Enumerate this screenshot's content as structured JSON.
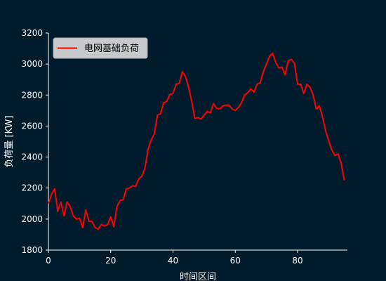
{
  "chart_data": {
    "type": "line",
    "xlabel": "时间区间",
    "ylabel": "负荷量 [KW]",
    "xlim": [
      0,
      96
    ],
    "ylim": [
      1800,
      3200
    ],
    "xticks": [
      0,
      20,
      40,
      60,
      80
    ],
    "yticks": [
      1800,
      2000,
      2200,
      2400,
      2600,
      2800,
      3000,
      3200
    ],
    "grid": false,
    "legend_position": "top-left",
    "series": [
      {
        "name": "电网基础负荷",
        "color": "#ff0000",
        "x": [
          0,
          1,
          2,
          3,
          4,
          5,
          6,
          7,
          8,
          9,
          10,
          11,
          12,
          13,
          14,
          15,
          16,
          17,
          18,
          19,
          20,
          21,
          22,
          23,
          24,
          25,
          26,
          27,
          28,
          29,
          30,
          31,
          32,
          33,
          34,
          35,
          36,
          37,
          38,
          39,
          40,
          41,
          42,
          43,
          44,
          45,
          46,
          47,
          48,
          49,
          50,
          51,
          52,
          53,
          54,
          55,
          56,
          57,
          58,
          59,
          60,
          61,
          62,
          63,
          64,
          65,
          66,
          67,
          68,
          69,
          70,
          71,
          72,
          73,
          74,
          75,
          76,
          77,
          78,
          79,
          80,
          81,
          82,
          83,
          84,
          85,
          86,
          87,
          88,
          89,
          90,
          91,
          92,
          93,
          94,
          95
        ],
        "values": [
          2100,
          2160,
          2195,
          2050,
          2110,
          2020,
          2110,
          2080,
          2020,
          2000,
          2005,
          1945,
          2060,
          1985,
          1985,
          1945,
          1935,
          1965,
          1955,
          1965,
          2015,
          1950,
          2080,
          2120,
          2125,
          2195,
          2200,
          2215,
          2210,
          2260,
          2275,
          2330,
          2450,
          2510,
          2550,
          2670,
          2680,
          2750,
          2760,
          2805,
          2810,
          2870,
          2875,
          2950,
          2920,
          2850,
          2760,
          2650,
          2655,
          2645,
          2670,
          2695,
          2685,
          2745,
          2715,
          2710,
          2730,
          2735,
          2735,
          2710,
          2700,
          2720,
          2750,
          2800,
          2815,
          2840,
          2820,
          2870,
          2880,
          2950,
          3000,
          3050,
          3070,
          3010,
          2975,
          2980,
          2930,
          3020,
          3030,
          3005,
          2870,
          2870,
          2810,
          2870,
          2850,
          2800,
          2710,
          2730,
          2660,
          2570,
          2505,
          2445,
          2410,
          2420,
          2360,
          2250
        ]
      }
    ]
  }
}
